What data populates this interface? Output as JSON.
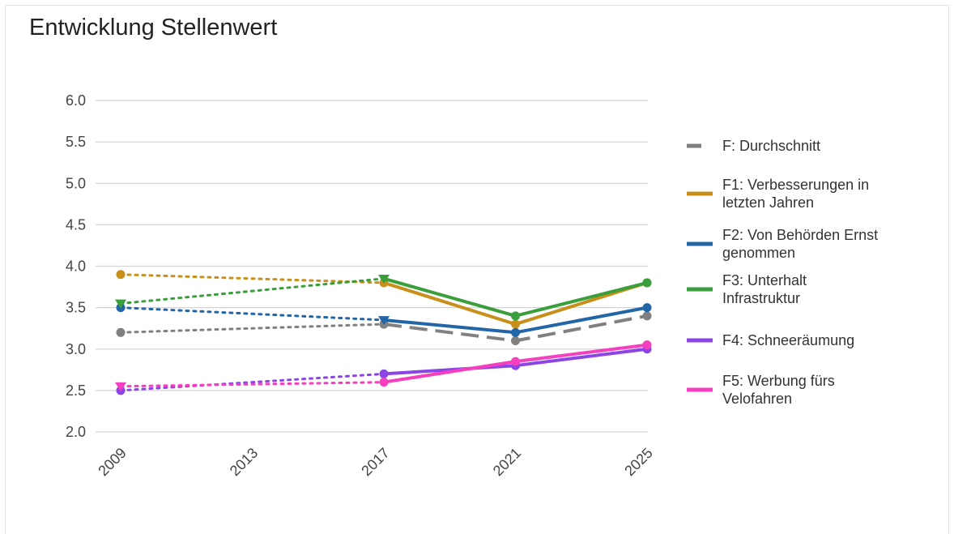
{
  "chart_data": {
    "type": "line",
    "title": "Entwicklung Stellenwert",
    "xlabel": "",
    "ylabel": "",
    "x_ticks": [
      "2009",
      "2013",
      "2017",
      "2021",
      "2025"
    ],
    "x_values": [
      2009,
      2017,
      2021,
      2025
    ],
    "xlim": [
      2009,
      2025
    ],
    "ylim": [
      2.0,
      6.0
    ],
    "y_ticks": [
      "2.0",
      "2.5",
      "3.0",
      "3.5",
      "4.0",
      "4.5",
      "5.0",
      "5.5",
      "6.0"
    ],
    "grid": "horizontal",
    "legend_position": "right",
    "series": [
      {
        "name": "F: Durchschnitt",
        "label_lines": [
          "F: Durchschnitt"
        ],
        "color": "#808080",
        "style": "dashed",
        "values": [
          3.2,
          3.3,
          3.1,
          3.4
        ]
      },
      {
        "name": "F1: Verbesserungen in letzten Jahren",
        "label_lines": [
          "F1: Verbesserungen in",
          "letzten Jahren"
        ],
        "color": "#c8901a",
        "style": "solid",
        "values": [
          3.9,
          3.8,
          3.3,
          3.8
        ]
      },
      {
        "name": "F2: Von Behörden Ernst genommen",
        "label_lines": [
          "F2: Von Behörden Ernst",
          "genommen"
        ],
        "color": "#2266a8",
        "style": "solid",
        "values": [
          3.5,
          3.35,
          3.2,
          3.5
        ]
      },
      {
        "name": "F3: Unterhalt Infrastruktur",
        "label_lines": [
          "F3: Unterhalt",
          "Infrastruktur"
        ],
        "color": "#3a9e3a",
        "style": "solid",
        "values": [
          3.55,
          3.85,
          3.4,
          3.8
        ]
      },
      {
        "name": "F4: Schneeräumung",
        "label_lines": [
          "F4: Schneeräumung"
        ],
        "color": "#8b45e6",
        "style": "solid",
        "values": [
          2.5,
          2.7,
          2.8,
          3.0
        ]
      },
      {
        "name": "F5: Werbung fürs Velofahren",
        "label_lines": [
          "F5: Werbung fürs",
          "Velofahren"
        ],
        "color": "#f53fbf",
        "style": "solid",
        "values": [
          2.55,
          2.6,
          2.85,
          3.05
        ]
      }
    ]
  }
}
